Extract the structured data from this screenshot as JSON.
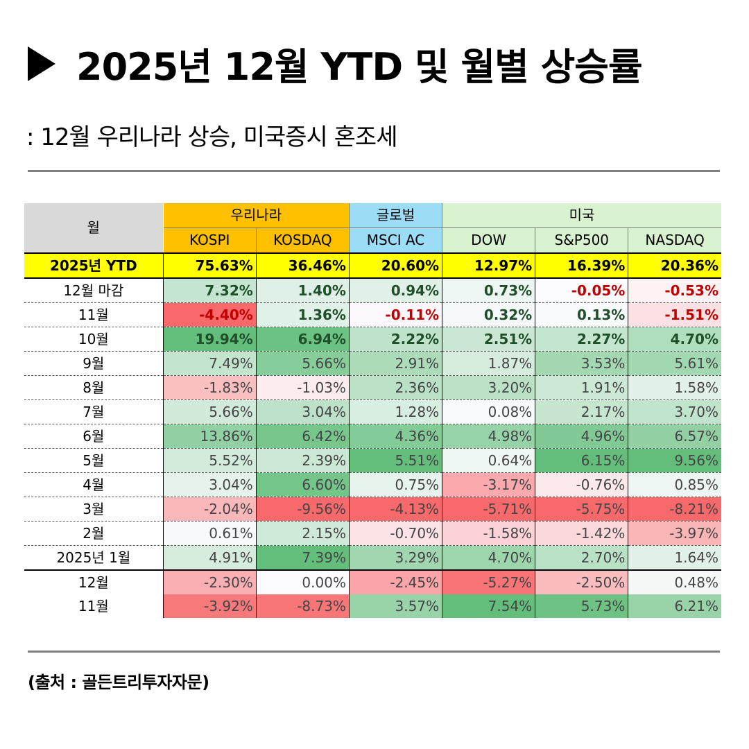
{
  "title": "2025년 12월 YTD 및 월별 상승률",
  "subtitle": ": 12월 우리나라 상승, 미국증시 혼조세",
  "source": "(출처 : 골든트리투자자문)",
  "table": {
    "corner_label": "월",
    "groups": [
      {
        "label": "우리나라",
        "span": 2,
        "color": "#ffc000"
      },
      {
        "label": "글로벌",
        "span": 1,
        "color": "#9bdcf7"
      },
      {
        "label": "미국",
        "span": 3,
        "color": "#d9f2d0"
      }
    ],
    "columns": [
      "KOSPI",
      "KOSDAQ",
      "MSCI AC",
      "DOW",
      "S&P500",
      "NASDAQ"
    ],
    "ytd": {
      "label": "2025년 YTD",
      "values": [
        "75.63%",
        "36.46%",
        "20.60%",
        "12.97%",
        "16.39%",
        "20.36%"
      ]
    },
    "rows": [
      {
        "label": "12월 마감",
        "values": [
          "7.32%",
          "1.40%",
          "0.94%",
          "0.73%",
          "-0.05%",
          "-0.53%"
        ],
        "bold": true
      },
      {
        "label": "11월",
        "values": [
          "-4.40%",
          "1.36%",
          "-0.11%",
          "0.32%",
          "0.13%",
          "-1.51%"
        ],
        "bold": true
      },
      {
        "label": "10월",
        "values": [
          "19.94%",
          "6.94%",
          "2.22%",
          "2.51%",
          "2.27%",
          "4.70%"
        ],
        "bold": true
      },
      {
        "label": "9월",
        "values": [
          "7.49%",
          "5.66%",
          "2.91%",
          "1.87%",
          "3.53%",
          "5.61%"
        ]
      },
      {
        "label": "8월",
        "values": [
          "-1.83%",
          "-1.03%",
          "2.36%",
          "3.20%",
          "1.91%",
          "1.58%"
        ]
      },
      {
        "label": "7월",
        "values": [
          "5.66%",
          "3.04%",
          "1.28%",
          "0.08%",
          "2.17%",
          "3.70%"
        ]
      },
      {
        "label": "6월",
        "values": [
          "13.86%",
          "6.42%",
          "4.36%",
          "4.98%",
          "4.96%",
          "6.57%"
        ]
      },
      {
        "label": "5월",
        "values": [
          "5.52%",
          "2.39%",
          "5.51%",
          "0.64%",
          "6.15%",
          "9.56%"
        ]
      },
      {
        "label": "4월",
        "values": [
          "3.04%",
          "6.60%",
          "0.75%",
          "-3.17%",
          "-0.76%",
          "0.85%"
        ]
      },
      {
        "label": "3월",
        "values": [
          "-2.04%",
          "-9.56%",
          "-4.13%",
          "-5.71%",
          "-5.75%",
          "-8.21%"
        ]
      },
      {
        "label": "2월",
        "values": [
          "0.61%",
          "2.15%",
          "-0.70%",
          "-1.58%",
          "-1.42%",
          "-3.97%"
        ]
      },
      {
        "label": "2025년 1월",
        "values": [
          "4.91%",
          "7.39%",
          "3.29%",
          "4.70%",
          "2.70%",
          "1.64%"
        ]
      },
      {
        "label": "12월",
        "values": [
          "-2.30%",
          "0.00%",
          "-2.45%",
          "-5.27%",
          "-2.50%",
          "0.48%"
        ],
        "prev": true
      },
      {
        "label": "11월",
        "values": [
          "-3.92%",
          "-8.73%",
          "3.57%",
          "7.54%",
          "5.73%",
          "6.21%"
        ],
        "prev": true
      }
    ]
  }
}
